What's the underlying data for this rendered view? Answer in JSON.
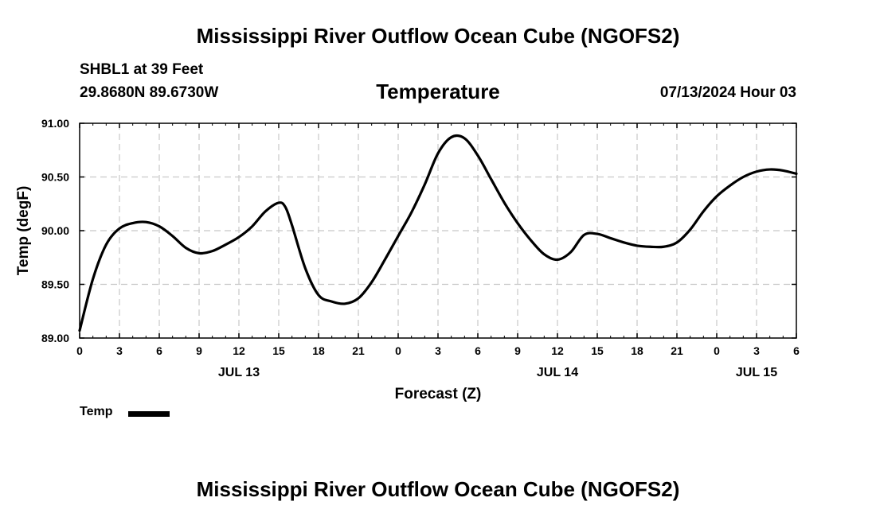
{
  "header": {
    "title": "Mississippi River Outflow Ocean Cube (NGOFS2)",
    "station": "SHBL1 at 39 Feet",
    "coords": "29.8680N  89.6730W",
    "datetime": "07/13/2024 Hour 03"
  },
  "footer": {
    "title": "Mississippi River Outflow Ocean Cube (NGOFS2)"
  },
  "legend": {
    "label": "Temp"
  },
  "colors": {
    "line": "#000000",
    "grid": "#c8c8c8"
  },
  "chart_data": {
    "type": "line",
    "title": "Temperature",
    "xlabel": "Forecast (Z)",
    "ylabel": "Temp (degF)",
    "xlim": [
      0,
      54
    ],
    "ylim": [
      89.0,
      91.0
    ],
    "grid": true,
    "legend_position": "bottom-left",
    "x_ticks": [
      {
        "x": 0,
        "label": "0"
      },
      {
        "x": 3,
        "label": "3"
      },
      {
        "x": 6,
        "label": "6"
      },
      {
        "x": 9,
        "label": "9"
      },
      {
        "x": 12,
        "label": "12"
      },
      {
        "x": 15,
        "label": "15"
      },
      {
        "x": 18,
        "label": "18"
      },
      {
        "x": 21,
        "label": "21"
      },
      {
        "x": 24,
        "label": "0"
      },
      {
        "x": 27,
        "label": "3"
      },
      {
        "x": 30,
        "label": "6"
      },
      {
        "x": 33,
        "label": "9"
      },
      {
        "x": 36,
        "label": "12"
      },
      {
        "x": 39,
        "label": "15"
      },
      {
        "x": 42,
        "label": "18"
      },
      {
        "x": 45,
        "label": "21"
      },
      {
        "x": 48,
        "label": "0"
      },
      {
        "x": 51,
        "label": "3"
      },
      {
        "x": 54,
        "label": "6"
      }
    ],
    "y_ticks": [
      {
        "y": 89.0,
        "label": "89.00"
      },
      {
        "y": 89.5,
        "label": "89.50"
      },
      {
        "y": 90.0,
        "label": "90.00"
      },
      {
        "y": 90.5,
        "label": "90.50"
      },
      {
        "y": 91.0,
        "label": "91.00"
      }
    ],
    "date_labels": [
      {
        "x": 12,
        "label": "JUL 13"
      },
      {
        "x": 36,
        "label": "JUL 14"
      },
      {
        "x": 51,
        "label": "JUL 15"
      }
    ],
    "series": [
      {
        "name": "Temp",
        "x": [
          0,
          1,
          2,
          3,
          4,
          5,
          6,
          7,
          8,
          9,
          10,
          11,
          12,
          13,
          14,
          15,
          15.5,
          16,
          17,
          18,
          19,
          20,
          21,
          22,
          23,
          24,
          25,
          26,
          27,
          28,
          29,
          30,
          31,
          32,
          33,
          34,
          35,
          36,
          37,
          38,
          39,
          40,
          41,
          42,
          43,
          44,
          45,
          46,
          47,
          48,
          49,
          50,
          51,
          52,
          53,
          54
        ],
        "values": [
          89.07,
          89.55,
          89.87,
          90.02,
          90.07,
          90.08,
          90.04,
          89.95,
          89.84,
          89.79,
          89.81,
          89.87,
          89.94,
          90.04,
          90.18,
          90.26,
          90.22,
          90.05,
          89.65,
          89.4,
          89.34,
          89.32,
          89.37,
          89.52,
          89.73,
          89.95,
          90.17,
          90.43,
          90.72,
          90.87,
          90.86,
          90.7,
          90.48,
          90.26,
          90.07,
          89.91,
          89.78,
          89.73,
          89.8,
          89.96,
          89.97,
          89.93,
          89.89,
          89.86,
          89.85,
          89.85,
          89.89,
          90.01,
          90.18,
          90.32,
          90.42,
          90.5,
          90.55,
          90.57,
          90.56,
          90.53
        ]
      }
    ]
  }
}
